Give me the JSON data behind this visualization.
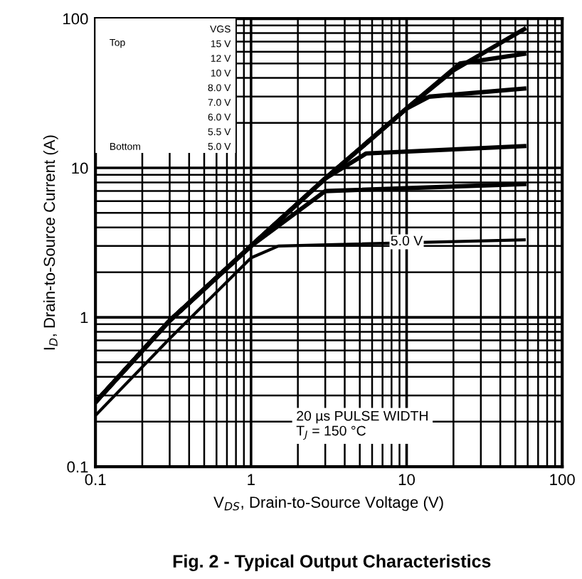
{
  "chart_data": {
    "type": "line",
    "title": "Fig. 2 - Typical Output Characteristics",
    "xlabel": "V$_{DS}$, Drain-to-Source Voltage (V)",
    "ylabel": "I$_{D}$, Drain-to-Source Current (A)",
    "log": "xy",
    "xlim": [
      0.1,
      100
    ],
    "ylim": [
      0.1,
      100
    ],
    "xticks": [
      0.1,
      1,
      10,
      100
    ],
    "yticks": [
      0.1,
      1,
      10,
      100
    ],
    "grid": true,
    "line_style": "solid",
    "marker": "none",
    "series": [
      {
        "color": "#000000",
        "x": [
          0.1,
          0.3,
          1,
          3,
          10,
          20,
          57
        ],
        "values": [
          0.27,
          0.95,
          3.0,
          8.5,
          25,
          45,
          85
        ]
      },
      {
        "color": "#000000",
        "x": [
          0.1,
          0.3,
          1,
          3,
          10,
          22,
          57
        ],
        "values": [
          0.27,
          0.95,
          3.0,
          8.5,
          25,
          50,
          58
        ]
      },
      {
        "color": "#000000",
        "x": [
          0.1,
          0.3,
          1,
          3,
          10,
          14,
          57
        ],
        "values": [
          0.27,
          0.95,
          3.0,
          8.5,
          25,
          30,
          34
        ]
      },
      {
        "color": "#000000",
        "x": [
          0.1,
          0.3,
          1,
          3,
          5.5,
          57
        ],
        "values": [
          0.27,
          0.95,
          3.0,
          8.5,
          12.5,
          14
        ]
      },
      {
        "color": "#000000",
        "x": [
          0.1,
          0.3,
          1,
          3,
          57
        ],
        "values": [
          0.27,
          0.95,
          3.0,
          7.0,
          7.8
        ]
      },
      {
        "color": "#000000",
        "x": [
          0.1,
          0.3,
          1,
          1.5,
          57
        ],
        "values": [
          0.22,
          0.72,
          2.5,
          3.0,
          3.3
        ]
      }
    ],
    "annotations": [
      "Top",
      "Bottom",
      "VGS",
      "15 V",
      "12 V",
      "10 V",
      "8.0 V",
      "7.0 V",
      "6.0 V",
      "5.5 V",
      "5.0 V",
      {
        "text": "5.0 V",
        "x": 10,
        "y": 3.2
      },
      "20 µs PULSE WIDTH\nT$_{J}$ = 150 °C"
    ]
  }
}
